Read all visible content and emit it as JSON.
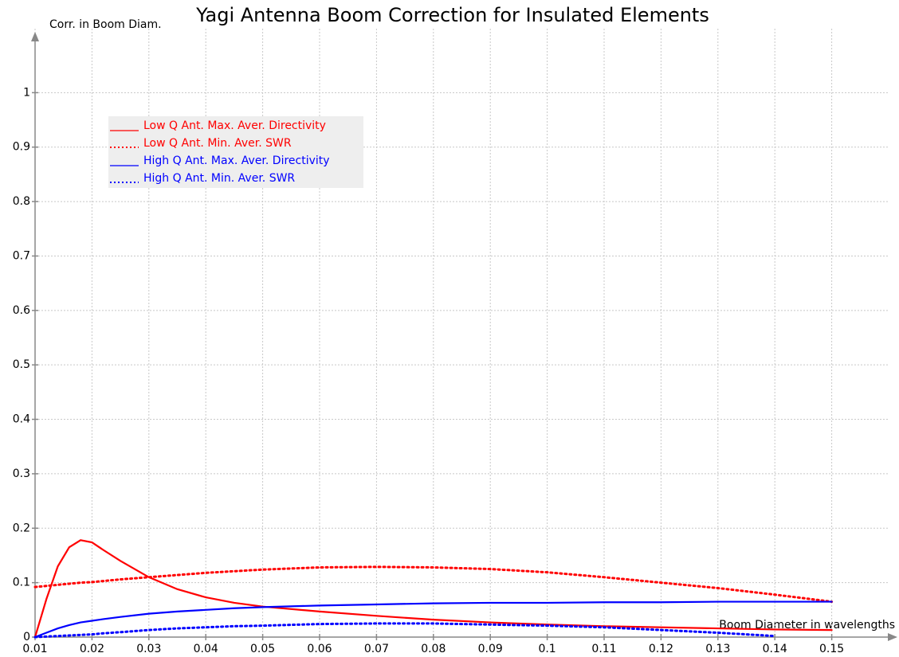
{
  "chart_data": {
    "type": "line",
    "title": "Yagi Antenna Boom Correction for Insulated Elements",
    "y_label": "Corr. in Boom Diam.",
    "x_label": "Boom Diameter in wavelengths",
    "x": [
      0.01,
      0.012,
      0.014,
      0.016,
      0.018,
      0.02,
      0.022,
      0.025,
      0.03,
      0.035,
      0.04,
      0.045,
      0.05,
      0.06,
      0.07,
      0.08,
      0.09,
      0.1,
      0.11,
      0.12,
      0.13,
      0.14,
      0.15
    ],
    "series": [
      {
        "name": "Low Q Ant. Max. Aver. Directivity",
        "color": "#ff0000",
        "dotted": false,
        "values": [
          0,
          0.07,
          0.13,
          0.165,
          0.178,
          0.174,
          0.16,
          0.14,
          0.11,
          0.088,
          0.073,
          0.063,
          0.056,
          0.047,
          0.039,
          0.032,
          0.027,
          0.023,
          0.02,
          0.018,
          0.016,
          0.014,
          0.013
        ]
      },
      {
        "name": "Low Q Ant. Min. Aver. SWR",
        "color": "#ff0000",
        "dotted": true,
        "values": [
          0.092,
          0.094,
          0.096,
          0.098,
          0.1,
          0.101,
          0.103,
          0.106,
          0.11,
          0.114,
          0.118,
          0.121,
          0.124,
          0.128,
          0.129,
          0.128,
          0.125,
          0.119,
          0.11,
          0.1,
          0.09,
          0.078,
          0.065
        ]
      },
      {
        "name": "High Q Ant. Max. Aver. Directivity",
        "color": "#0000ff",
        "dotted": false,
        "values": [
          0,
          0.008,
          0.016,
          0.022,
          0.027,
          0.03,
          0.033,
          0.037,
          0.043,
          0.047,
          0.05,
          0.053,
          0.055,
          0.058,
          0.06,
          0.062,
          0.063,
          0.063,
          0.064,
          0.064,
          0.065,
          0.065,
          0.065
        ]
      },
      {
        "name": "High Q Ant. Min. Aver. SWR",
        "color": "#0000ff",
        "dotted": true,
        "values": [
          0,
          0.001,
          0.002,
          0.003,
          0.004,
          0.005,
          0.007,
          0.009,
          0.013,
          0.016,
          0.018,
          0.02,
          0.021,
          0.024,
          0.025,
          0.025,
          0.023,
          0.021,
          0.018,
          0.013,
          0.008,
          0.002,
          null
        ]
      }
    ],
    "xlim": [
      0.01,
      0.16
    ],
    "ylim": [
      0,
      1.1
    ],
    "xticks": [
      0.01,
      0.02,
      0.03,
      0.04,
      0.05,
      0.06,
      0.07,
      0.08,
      0.09,
      0.1,
      0.11,
      0.12,
      0.13,
      0.14,
      0.15
    ],
    "yticks": [
      0,
      0.1,
      0.2,
      0.3,
      0.4,
      0.5,
      0.6,
      0.7,
      0.8,
      0.9,
      1
    ],
    "grid": true,
    "legend": "upper left"
  }
}
